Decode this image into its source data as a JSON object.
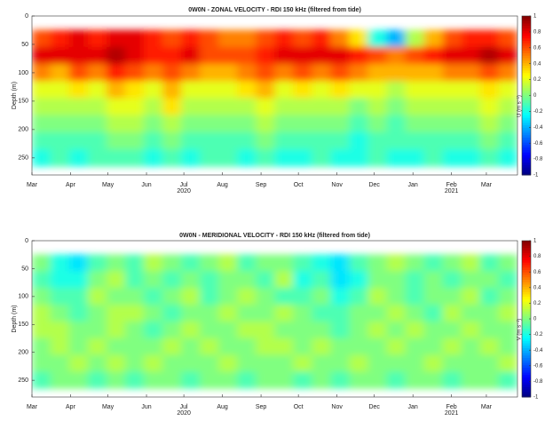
{
  "chart_data": [
    {
      "type": "heatmap",
      "title": "0W0N - ZONAL VELOCITY - RDI 150 kHz (filtered from tide)",
      "ylabel": "Depth (m)",
      "colorbar_label": "U (m s⁻¹)",
      "xlim": [
        0,
        390
      ],
      "ylim": [
        0,
        280
      ],
      "y_inverted": true,
      "clim": [
        -1,
        1
      ],
      "colormap": "jet",
      "xticks": [
        {
          "value": 0,
          "label": "Mar"
        },
        {
          "value": 31,
          "label": "Apr"
        },
        {
          "value": 61,
          "label": "May"
        },
        {
          "value": 92,
          "label": "Jun"
        },
        {
          "value": 122,
          "label": "Jul"
        },
        {
          "value": 153,
          "label": "Aug"
        },
        {
          "value": 184,
          "label": "Sep"
        },
        {
          "value": 214,
          "label": "Oct"
        },
        {
          "value": 245,
          "label": "Nov"
        },
        {
          "value": 275,
          "label": "Dec"
        },
        {
          "value": 306,
          "label": "Jan"
        },
        {
          "value": 337,
          "label": "Feb"
        },
        {
          "value": 365,
          "label": "Mar"
        }
      ],
      "xtick_years": [
        {
          "value": 122,
          "label": "2020"
        },
        {
          "value": 337,
          "label": "2021"
        }
      ],
      "yticks": [
        0,
        50,
        100,
        150,
        200,
        250
      ],
      "cticks": [
        1,
        0.8,
        0.6,
        0.4,
        0.2,
        0,
        -0.2,
        -0.4,
        -0.6,
        -0.8,
        -1
      ],
      "x": [
        7.5,
        22.5,
        37.5,
        52.5,
        67.5,
        82.5,
        97.5,
        112.5,
        127.5,
        142.5,
        157.5,
        172.5,
        187.5,
        202.5,
        217.5,
        232.5,
        247.5,
        262.5,
        277.5,
        292.5,
        307.5,
        322.5,
        337.5,
        352.5,
        367.5,
        382.5
      ],
      "y": [
        40,
        70,
        100,
        130,
        160,
        190,
        220,
        250
      ],
      "values": [
        [
          0.6,
          0.7,
          0.8,
          0.7,
          0.8,
          0.8,
          0.7,
          0.6,
          0.7,
          0.6,
          0.5,
          0.5,
          0.6,
          0.7,
          0.6,
          0.7,
          0.5,
          0.3,
          -0.2,
          -0.4,
          0.1,
          0.4,
          0.6,
          0.7,
          0.7,
          0.6
        ],
        [
          0.8,
          0.8,
          0.8,
          0.8,
          0.9,
          0.8,
          0.7,
          0.7,
          0.8,
          0.6,
          0.6,
          0.6,
          0.7,
          0.8,
          0.8,
          0.8,
          0.8,
          0.7,
          0.6,
          0.5,
          0.6,
          0.7,
          0.8,
          0.8,
          0.9,
          0.8
        ],
        [
          0.5,
          0.4,
          0.6,
          0.5,
          0.7,
          0.6,
          0.5,
          0.6,
          0.5,
          0.4,
          0.4,
          0.5,
          0.6,
          0.5,
          0.6,
          0.5,
          0.6,
          0.5,
          0.4,
          0.4,
          0.4,
          0.4,
          0.5,
          0.5,
          0.6,
          0.5
        ],
        [
          0.2,
          0.2,
          0.3,
          0.2,
          0.4,
          0.3,
          0.2,
          0.4,
          0.2,
          0.2,
          0.2,
          0.3,
          0.4,
          0.2,
          0.3,
          0.2,
          0.3,
          0.2,
          0.2,
          0.1,
          0.2,
          0.2,
          0.2,
          0.2,
          0.3,
          0.2
        ],
        [
          0.1,
          0.1,
          0.1,
          0.1,
          0.2,
          0.2,
          0.1,
          0.3,
          0.1,
          0.1,
          0.1,
          0.1,
          0.2,
          0.1,
          0.1,
          0.1,
          0.1,
          0,
          0.1,
          0,
          0.1,
          0.1,
          0.1,
          0.1,
          0.2,
          0.1
        ],
        [
          0,
          0,
          0,
          0,
          0.1,
          0.1,
          0,
          0.1,
          0,
          0,
          0,
          0,
          0.1,
          0,
          0,
          0,
          0,
          -0.1,
          0,
          -0.1,
          0,
          0,
          0,
          0,
          0.1,
          0
        ],
        [
          -0.1,
          -0.1,
          -0.1,
          -0.1,
          0,
          0,
          -0.1,
          0,
          -0.1,
          -0.1,
          -0.1,
          -0.1,
          0,
          -0.1,
          -0.1,
          -0.1,
          -0.1,
          -0.2,
          -0.1,
          -0.1,
          -0.1,
          -0.1,
          -0.1,
          -0.1,
          0,
          -0.1
        ],
        [
          -0.2,
          -0.1,
          -0.2,
          -0.1,
          -0.1,
          -0.1,
          -0.2,
          -0.1,
          -0.2,
          -0.1,
          -0.1,
          -0.2,
          -0.1,
          -0.2,
          -0.2,
          -0.1,
          -0.2,
          -0.2,
          -0.1,
          -0.2,
          -0.2,
          -0.1,
          -0.2,
          -0.2,
          -0.1,
          -0.2
        ]
      ]
    },
    {
      "type": "heatmap",
      "title": "0W0N - MERIDIONAL VELOCITY - RDI 150 kHz (filtered from tide)",
      "ylabel": "Depth (m)",
      "colorbar_label": "V (m s⁻¹)",
      "xlim": [
        0,
        390
      ],
      "ylim": [
        0,
        280
      ],
      "y_inverted": true,
      "clim": [
        -1,
        1
      ],
      "colormap": "jet",
      "xticks": [
        {
          "value": 0,
          "label": "Mar"
        },
        {
          "value": 31,
          "label": "Apr"
        },
        {
          "value": 61,
          "label": "May"
        },
        {
          "value": 92,
          "label": "Jun"
        },
        {
          "value": 122,
          "label": "Jul"
        },
        {
          "value": 153,
          "label": "Aug"
        },
        {
          "value": 184,
          "label": "Sep"
        },
        {
          "value": 214,
          "label": "Oct"
        },
        {
          "value": 245,
          "label": "Nov"
        },
        {
          "value": 275,
          "label": "Dec"
        },
        {
          "value": 306,
          "label": "Jan"
        },
        {
          "value": 337,
          "label": "Feb"
        },
        {
          "value": 365,
          "label": "Mar"
        }
      ],
      "xtick_years": [
        {
          "value": 122,
          "label": "2020"
        },
        {
          "value": 337,
          "label": "2021"
        }
      ],
      "yticks": [
        0,
        50,
        100,
        150,
        200,
        250
      ],
      "cticks": [
        1,
        0.8,
        0.6,
        0.4,
        0.2,
        0,
        -0.2,
        -0.4,
        -0.6,
        -0.8,
        -1
      ],
      "x": [
        7.5,
        22.5,
        37.5,
        52.5,
        67.5,
        82.5,
        97.5,
        112.5,
        127.5,
        142.5,
        157.5,
        172.5,
        187.5,
        202.5,
        217.5,
        232.5,
        247.5,
        262.5,
        277.5,
        292.5,
        307.5,
        322.5,
        337.5,
        352.5,
        367.5,
        382.5
      ],
      "y": [
        40,
        70,
        100,
        130,
        160,
        190,
        220,
        250
      ],
      "values": [
        [
          0,
          -0.2,
          -0.3,
          -0.1,
          0,
          -0.1,
          0.1,
          0,
          -0.1,
          0,
          0.1,
          -0.1,
          0,
          0,
          -0.1,
          -0.2,
          -0.3,
          -0.1,
          0,
          0.1,
          0,
          -0.1,
          0,
          0.1,
          -0.1,
          0
        ],
        [
          -0.1,
          -0.2,
          -0.2,
          0,
          0.1,
          -0.1,
          0,
          -0.1,
          0,
          -0.1,
          0,
          0,
          -0.1,
          0.1,
          -0.2,
          -0.1,
          -0.3,
          -0.2,
          0,
          0,
          -0.1,
          0,
          -0.1,
          0,
          0,
          -0.1
        ],
        [
          0,
          -0.1,
          -0.1,
          0.1,
          0,
          0,
          -0.1,
          0,
          0.1,
          -0.1,
          0,
          0.1,
          0,
          -0.1,
          -0.1,
          0,
          -0.2,
          -0.1,
          0.1,
          0,
          -0.1,
          0,
          0,
          0.1,
          -0.1,
          0
        ],
        [
          0.1,
          0,
          -0.1,
          0,
          0.1,
          0.1,
          0,
          -0.1,
          0,
          0,
          0.1,
          0,
          0,
          0.1,
          0,
          -0.1,
          -0.1,
          0,
          0,
          0.1,
          0,
          -0.1,
          0.1,
          0,
          0,
          0.1
        ],
        [
          0.1,
          0.1,
          0,
          0,
          0.1,
          0,
          -0.1,
          0,
          0.1,
          0,
          0,
          0.1,
          0.1,
          0,
          0,
          0,
          -0.1,
          0,
          0.1,
          0,
          0.1,
          0,
          0,
          0.1,
          0,
          0
        ],
        [
          0,
          0.1,
          0,
          0.1,
          0,
          0,
          0,
          0.1,
          0,
          0.1,
          0,
          0,
          0.1,
          0.1,
          0,
          0.1,
          0,
          0,
          0,
          0.1,
          0,
          0,
          0.1,
          0,
          0.1,
          0
        ],
        [
          0,
          0,
          0.1,
          0,
          0.1,
          0,
          0.1,
          0,
          0,
          0,
          0.1,
          0,
          0,
          0,
          0.1,
          0,
          0,
          0.1,
          0,
          0,
          0,
          0.1,
          0,
          0,
          0,
          0.1
        ],
        [
          -0.1,
          0,
          0,
          -0.1,
          0,
          -0.1,
          0,
          0,
          -0.1,
          0,
          0,
          -0.1,
          0,
          0,
          -0.1,
          0,
          -0.1,
          0,
          0,
          -0.1,
          0,
          0,
          -0.1,
          0,
          0,
          -0.1
        ]
      ]
    }
  ]
}
